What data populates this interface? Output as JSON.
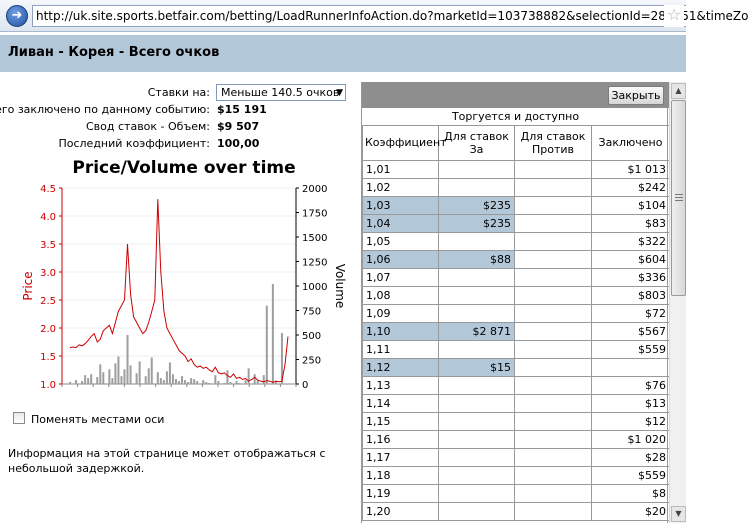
{
  "browser": {
    "url": "http://uk.site.sports.betfair.com/betting/LoadRunnerInfoAction.do?marketId=103738882&selectionId=286851&timeZo"
  },
  "header": {
    "title": "Ливан - Корея - Всего очков"
  },
  "info": {
    "bets_label": "Ставки на:",
    "bets_selected": "Меньше 140.5 очков",
    "total_label": "Всего заключено по данному событию:",
    "total_value": "$15 191",
    "volume_label": "Свод ставок - Объем:",
    "volume_value": "$9 507",
    "last_label": "Последний коэффициент:",
    "last_value": "100,00"
  },
  "chart_data": {
    "type": "line",
    "title": "Price/Volume over time",
    "ylabel": "Price",
    "y2label": "Volume",
    "ylim": [
      1.0,
      4.5
    ],
    "y2lim": [
      0,
      2000
    ],
    "yticks": [
      "4.5",
      "4.0",
      "3.5",
      "3.0",
      "2.5",
      "2.0",
      "1.5",
      "1.0"
    ],
    "y2ticks": [
      "2000",
      "1750",
      "1500",
      "1250",
      "1000",
      "750",
      "500",
      "250",
      "0"
    ],
    "series": [
      {
        "name": "Price",
        "color": "#cc0000",
        "values": [
          1.65,
          1.66,
          1.65,
          1.7,
          1.68,
          1.72,
          1.78,
          1.85,
          1.9,
          1.75,
          1.8,
          1.95,
          2.0,
          2.05,
          1.9,
          2.1,
          2.3,
          2.4,
          2.5,
          3.5,
          2.6,
          2.2,
          2.1,
          2.0,
          1.9,
          1.95,
          2.1,
          2.3,
          2.5,
          4.3,
          3.0,
          2.3,
          2.0,
          1.9,
          1.8,
          1.7,
          1.6,
          1.55,
          1.5,
          1.4,
          1.45,
          1.35,
          1.3,
          1.32,
          1.28,
          1.3,
          1.25,
          1.22,
          1.3,
          1.2,
          1.18,
          1.2,
          1.15,
          1.12,
          1.18,
          1.1,
          1.12,
          1.08,
          1.1,
          1.05,
          1.08,
          1.12,
          1.07,
          1.05,
          1.04,
          1.06,
          1.05,
          1.03,
          1.05,
          1.04,
          1.05,
          1.35,
          1.85
        ]
      },
      {
        "name": "Volume",
        "color": "#9e9e9e",
        "values": [
          20,
          0,
          40,
          0,
          30,
          90,
          60,
          100,
          0,
          70,
          200,
          120,
          0,
          150,
          60,
          210,
          280,
          80,
          150,
          500,
          190,
          0,
          110,
          230,
          0,
          80,
          160,
          270,
          0,
          120,
          60,
          40,
          130,
          220,
          100,
          50,
          30,
          80,
          40,
          20,
          60,
          50,
          30,
          0,
          40,
          20,
          10,
          0,
          90,
          30,
          0,
          10,
          140,
          20,
          0,
          30,
          10,
          0,
          40,
          160,
          0,
          100,
          40,
          0,
          90,
          800,
          0,
          1020,
          30,
          0,
          520,
          0,
          0
        ]
      }
    ]
  },
  "swap_axes_label": "Поменять местами оси",
  "note": "Информация на этой странице может отображаться с небольшой задержкой.",
  "panel": {
    "close_label": "Закрыть",
    "subtitle": "Торгуется и доступно",
    "columns": [
      "Коэффициент",
      "Для ставок За",
      "Для ставок Против",
      "Заключено"
    ],
    "rows": [
      {
        "odds": "1,01",
        "back": "",
        "lay": "",
        "matched": "$1 013",
        "hl": false
      },
      {
        "odds": "1,02",
        "back": "",
        "lay": "",
        "matched": "$242",
        "hl": false
      },
      {
        "odds": "1,03",
        "back": "$235",
        "lay": "",
        "matched": "$104",
        "hl": true
      },
      {
        "odds": "1,04",
        "back": "$235",
        "lay": "",
        "matched": "$83",
        "hl": true
      },
      {
        "odds": "1,05",
        "back": "",
        "lay": "",
        "matched": "$322",
        "hl": false
      },
      {
        "odds": "1,06",
        "back": "$88",
        "lay": "",
        "matched": "$604",
        "hl": true
      },
      {
        "odds": "1,07",
        "back": "",
        "lay": "",
        "matched": "$336",
        "hl": false
      },
      {
        "odds": "1,08",
        "back": "",
        "lay": "",
        "matched": "$803",
        "hl": false
      },
      {
        "odds": "1,09",
        "back": "",
        "lay": "",
        "matched": "$72",
        "hl": false
      },
      {
        "odds": "1,10",
        "back": "$2 871",
        "lay": "",
        "matched": "$567",
        "hl": true
      },
      {
        "odds": "1,11",
        "back": "",
        "lay": "",
        "matched": "$559",
        "hl": false
      },
      {
        "odds": "1,12",
        "back": "$15",
        "lay": "",
        "matched": "",
        "hl": true
      },
      {
        "odds": "1,13",
        "back": "",
        "lay": "",
        "matched": "$76",
        "hl": false
      },
      {
        "odds": "1,14",
        "back": "",
        "lay": "",
        "matched": "$13",
        "hl": false
      },
      {
        "odds": "1,15",
        "back": "",
        "lay": "",
        "matched": "$12",
        "hl": false
      },
      {
        "odds": "1,16",
        "back": "",
        "lay": "",
        "matched": "$1 020",
        "hl": false
      },
      {
        "odds": "1,17",
        "back": "",
        "lay": "",
        "matched": "$28",
        "hl": false
      },
      {
        "odds": "1,18",
        "back": "",
        "lay": "",
        "matched": "$559",
        "hl": false
      },
      {
        "odds": "1,19",
        "back": "",
        "lay": "",
        "matched": "$8",
        "hl": false
      },
      {
        "odds": "1,20",
        "back": "",
        "lay": "",
        "matched": "$20",
        "hl": false
      }
    ]
  }
}
